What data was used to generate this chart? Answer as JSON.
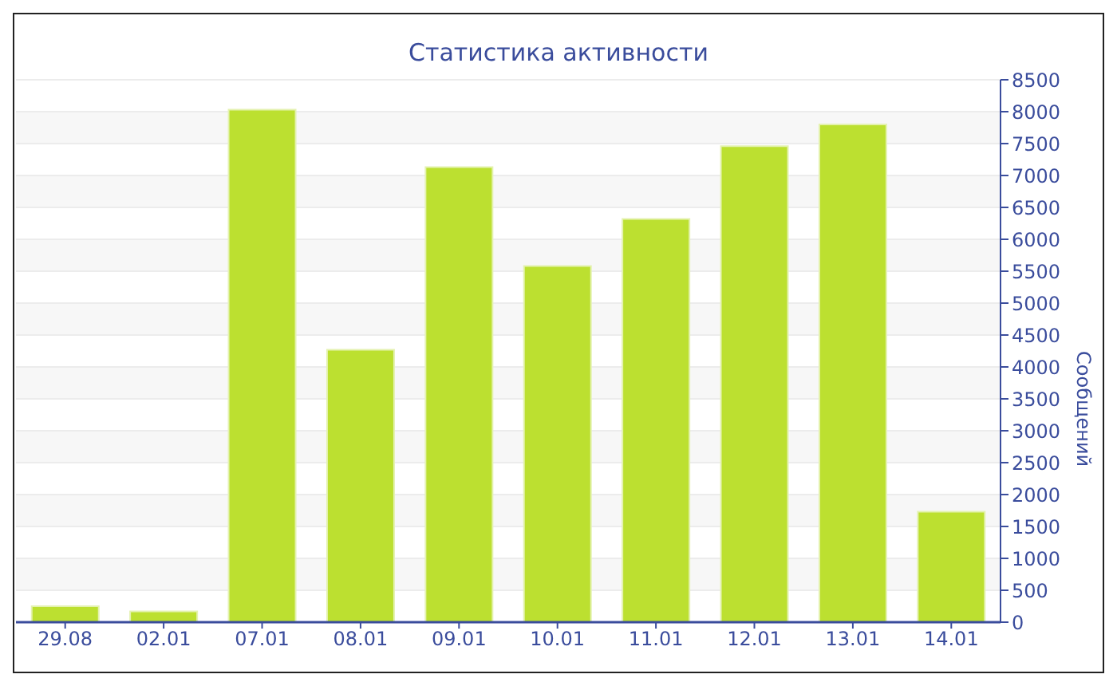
{
  "chart_data": {
    "type": "bar",
    "title": "Статистика активности",
    "ylabel": "Сообщений",
    "categories": [
      "29.08",
      "02.01",
      "07.01",
      "08.01",
      "09.01",
      "10.01",
      "11.01",
      "12.01",
      "13.01",
      "14.01"
    ],
    "values": [
      250,
      170,
      8030,
      4270,
      7130,
      5580,
      6320,
      7460,
      7800,
      1730
    ],
    "color": "#bce030",
    "ylim": [
      0,
      8500
    ],
    "yticks": [
      0,
      500,
      1000,
      1500,
      2000,
      2500,
      3000,
      3500,
      4000,
      4500,
      5000,
      5500,
      6000,
      6500,
      7000,
      7500,
      8000,
      8500
    ],
    "grid": "y"
  }
}
